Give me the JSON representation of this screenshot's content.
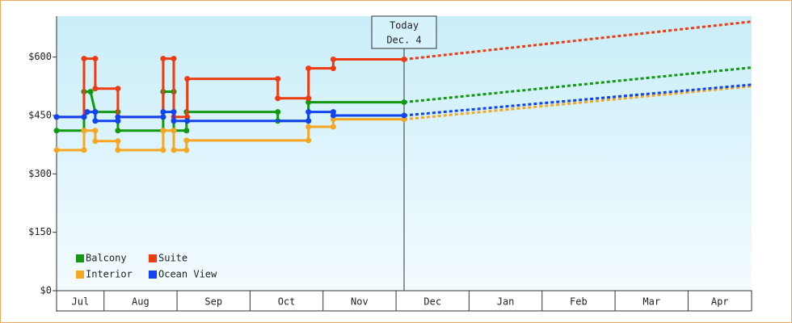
{
  "chart_data": {
    "type": "step-line",
    "ylim": [
      0,
      705
    ],
    "yticks": [
      {
        "value": 0,
        "label": "$0"
      },
      {
        "value": 150,
        "label": "$150"
      },
      {
        "value": 300,
        "label": "$300"
      },
      {
        "value": 450,
        "label": "$450"
      },
      {
        "value": 600,
        "label": "$600"
      }
    ],
    "xlim": [
      0.35,
      9.87
    ],
    "xticks": [
      1,
      2,
      3,
      4,
      5,
      6,
      7,
      8,
      9
    ],
    "x_categories": [
      "Jul",
      "Aug",
      "Sep",
      "Oct",
      "Nov",
      "Dec",
      "Jan",
      "Feb",
      "Mar",
      "Apr"
    ],
    "annotation": {
      "x": 5.11,
      "label": [
        "Today",
        "Dec. 4"
      ]
    },
    "legend": "bottom-left",
    "series": [
      {
        "name": "Balcony",
        "color": "#119911",
        "x": [
          0.35,
          0.726,
          0.726,
          0.815,
          0.88,
          1.19,
          1.19,
          1.81,
          1.81,
          1.955,
          1.955,
          2.13,
          2.13,
          3.38,
          3.38,
          3.8,
          3.8,
          5.11
        ],
        "values": [
          411,
          411,
          511,
          511,
          459,
          459,
          411,
          411,
          511,
          511,
          411,
          411,
          459,
          459,
          436,
          436,
          484,
          484
        ],
        "projected": {
          "x": [
            5.11,
            9.87
          ],
          "values": [
            484,
            573
          ]
        }
      },
      {
        "name": "Suite",
        "color": "#ee3b11",
        "x": [
          0.35,
          0.726,
          0.726,
          0.88,
          0.88,
          1.19,
          1.19,
          1.81,
          1.81,
          1.955,
          1.955,
          2.14,
          2.14,
          3.38,
          3.38,
          3.8,
          3.8,
          4.14,
          4.14,
          5.11
        ],
        "values": [
          446,
          446,
          596,
          596,
          519,
          519,
          446,
          446,
          596,
          596,
          446,
          446,
          544,
          544,
          494,
          494,
          571,
          571,
          594,
          594
        ],
        "projected": {
          "x": [
            5.11,
            9.87
          ],
          "values": [
            594,
            691
          ]
        }
      },
      {
        "name": "Interior",
        "color": "#f5a623",
        "x": [
          0.35,
          0.726,
          0.726,
          0.88,
          0.88,
          1.19,
          1.19,
          1.81,
          1.81,
          1.955,
          1.955,
          2.13,
          2.13,
          3.8,
          3.8,
          4.14,
          4.14,
          5.11
        ],
        "values": [
          361,
          361,
          411,
          411,
          384,
          384,
          361,
          361,
          411,
          411,
          361,
          361,
          386,
          386,
          421,
          421,
          440,
          440
        ],
        "projected": {
          "x": [
            5.11,
            9.87
          ],
          "values": [
            440,
            525
          ]
        }
      },
      {
        "name": "Ocean View",
        "color": "#1144ee",
        "x": [
          0.35,
          0.726,
          0.77,
          0.88,
          0.88,
          1.19,
          1.19,
          1.81,
          1.81,
          1.955,
          1.955,
          2.14,
          3.8,
          3.8,
          4.14,
          4.14,
          5.11
        ],
        "values": [
          446,
          446,
          459,
          459,
          436,
          436,
          446,
          446,
          459,
          459,
          436,
          436,
          436,
          459,
          459,
          450,
          450
        ],
        "projected": {
          "x": [
            5.11,
            9.87
          ],
          "values": [
            450,
            529
          ]
        }
      }
    ]
  }
}
